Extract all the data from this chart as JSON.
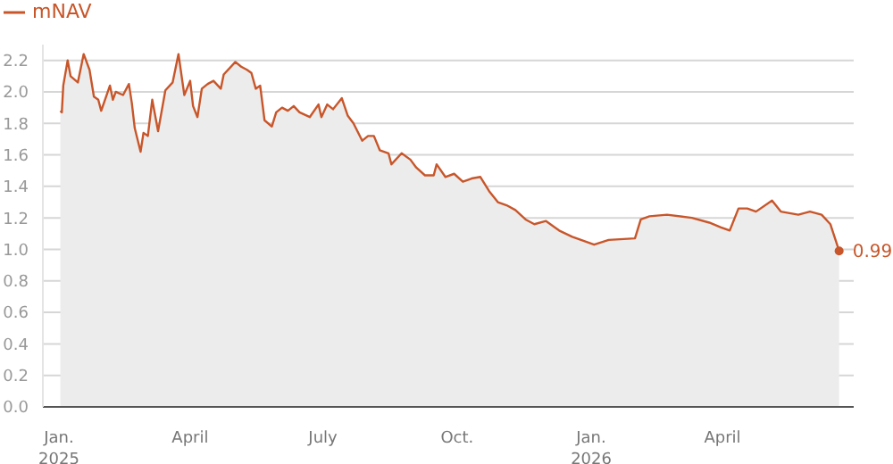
{
  "chart_data": {
    "type": "area",
    "legend": "top left",
    "grid": "y",
    "marker": "none",
    "x": [
      "2025-01-02",
      "2025-01-03",
      "2025-01-04",
      "2025-01-07",
      "2025-01-09",
      "2025-01-14",
      "2025-01-18",
      "2025-01-22",
      "2025-01-25",
      "2025-01-28",
      "2025-01-30",
      "2025-02-05",
      "2025-02-07",
      "2025-02-09",
      "2025-02-14",
      "2025-02-18",
      "2025-02-20",
      "2025-02-22",
      "2025-02-26",
      "2025-02-28",
      "2025-03-03",
      "2025-03-06",
      "2025-03-10",
      "2025-03-15",
      "2025-03-20",
      "2025-03-24",
      "2025-03-28",
      "2025-04-01",
      "2025-04-03",
      "2025-04-06",
      "2025-04-09",
      "2025-04-13",
      "2025-04-17",
      "2025-04-22",
      "2025-04-24",
      "2025-05-02",
      "2025-05-06",
      "2025-05-10",
      "2025-05-13",
      "2025-05-16",
      "2025-05-19",
      "2025-05-22",
      "2025-05-27",
      "2025-05-30",
      "2025-06-03",
      "2025-06-07",
      "2025-06-11",
      "2025-06-15",
      "2025-06-22",
      "2025-06-28",
      "2025-06-30",
      "2025-07-04",
      "2025-07-08",
      "2025-07-14",
      "2025-07-18",
      "2025-07-22",
      "2025-07-28",
      "2025-08-01",
      "2025-08-05",
      "2025-08-09",
      "2025-08-15",
      "2025-08-17",
      "2025-08-24",
      "2025-08-30",
      "2025-09-03",
      "2025-09-09",
      "2025-09-15",
      "2025-09-17",
      "2025-09-23",
      "2025-09-29",
      "2025-10-05",
      "2025-10-11",
      "2025-10-17",
      "2025-10-23",
      "2025-10-29",
      "2025-11-04",
      "2025-11-10",
      "2025-11-17",
      "2025-11-23",
      "2025-12-01",
      "2025-12-10",
      "2025-12-19",
      "2026-01-03",
      "2026-01-13",
      "2026-01-31",
      "2026-02-04",
      "2026-02-10",
      "2026-02-22",
      "2026-03-11",
      "2026-03-23",
      "2026-03-31",
      "2026-04-06",
      "2026-04-12",
      "2026-04-18",
      "2026-04-24",
      "2026-05-05",
      "2026-05-11",
      "2026-05-23",
      "2026-05-31",
      "2026-06-08",
      "2026-06-14",
      "2026-06-20"
    ],
    "series": [
      {
        "name": "mNAV",
        "color": "#c8562a",
        "values": [
          1.88,
          1.87,
          2.04,
          2.2,
          2.1,
          2.06,
          2.24,
          2.14,
          1.97,
          1.95,
          1.88,
          2.04,
          1.95,
          2.0,
          1.98,
          2.05,
          1.93,
          1.77,
          1.62,
          1.74,
          1.72,
          1.95,
          1.75,
          2.01,
          2.06,
          2.24,
          1.98,
          2.07,
          1.91,
          1.84,
          2.02,
          2.05,
          2.07,
          2.02,
          2.11,
          2.19,
          2.16,
          2.14,
          2.12,
          2.02,
          2.04,
          1.82,
          1.78,
          1.87,
          1.9,
          1.88,
          1.91,
          1.87,
          1.84,
          1.92,
          1.84,
          1.92,
          1.89,
          1.96,
          1.85,
          1.8,
          1.69,
          1.72,
          1.72,
          1.63,
          1.61,
          1.54,
          1.61,
          1.57,
          1.52,
          1.47,
          1.47,
          1.54,
          1.46,
          1.48,
          1.43,
          1.45,
          1.46,
          1.37,
          1.3,
          1.28,
          1.25,
          1.19,
          1.16,
          1.18,
          1.12,
          1.08,
          1.03,
          1.06,
          1.07,
          1.19,
          1.21,
          1.22,
          1.2,
          1.17,
          1.14,
          1.12,
          1.26,
          1.26,
          1.24,
          1.31,
          1.24,
          1.22,
          1.24,
          1.22,
          1.16,
          0.99
        ]
      }
    ],
    "xlim": [
      "2024-12-21",
      "2026-06-30"
    ],
    "xticks": [
      {
        "value": "2025-01-01",
        "label": "Jan.\n2025"
      },
      {
        "value": "2025-04-01",
        "label": "April"
      },
      {
        "value": "2025-07-01",
        "label": "July"
      },
      {
        "value": "2025-10-01",
        "label": "Oct."
      },
      {
        "value": "2026-01-01",
        "label": "Jan.\n2026"
      },
      {
        "value": "2026-04-01",
        "label": "April"
      }
    ],
    "ylim": [
      0,
      2.3
    ],
    "yticks": [
      {
        "value": 0,
        "label": "0.0"
      },
      {
        "value": 0.2,
        "label": "0.2"
      },
      {
        "value": 0.4,
        "label": "0.4"
      },
      {
        "value": 0.6,
        "label": "0.6"
      },
      {
        "value": 0.8,
        "label": "0.8"
      },
      {
        "value": 1,
        "label": "1.0"
      },
      {
        "value": 1.2,
        "label": "1.2"
      },
      {
        "value": 1.4,
        "label": "1.4"
      },
      {
        "value": 1.6,
        "label": "1.6"
      },
      {
        "value": 1.8,
        "label": "1.8"
      },
      {
        "value": 2,
        "label": "2.0"
      },
      {
        "value": 2.2,
        "label": "2.2"
      }
    ],
    "annotations": [
      {
        "text": "0.99",
        "x": "2026-06-20",
        "y": 0.99
      }
    ]
  }
}
